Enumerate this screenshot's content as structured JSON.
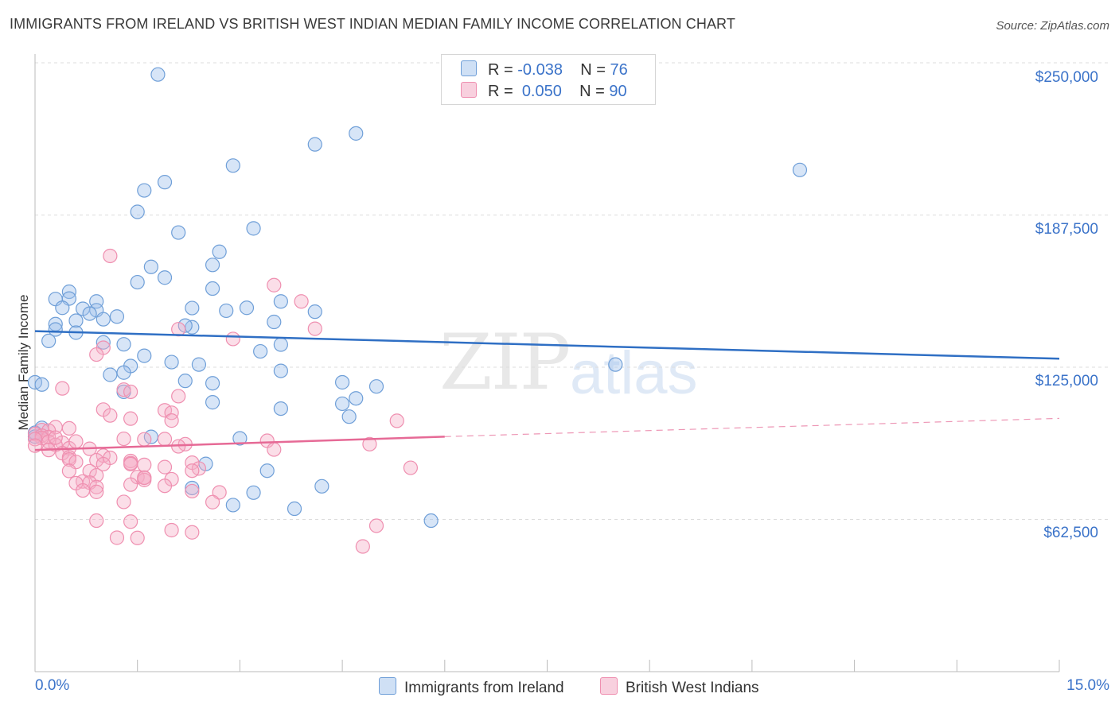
{
  "title": "IMMIGRANTS FROM IRELAND VS BRITISH WEST INDIAN MEDIAN FAMILY INCOME CORRELATION CHART",
  "source": "Source: ZipAtlas.com",
  "watermark": {
    "zip": "ZIP",
    "atlas": "atlas"
  },
  "legend": {
    "ireland": {
      "r_label": "R = ",
      "r_value": "-0.038",
      "n_label": "N = ",
      "n_value": "76"
    },
    "bwi": {
      "r_label": "R = ",
      "r_value": "0.050",
      "n_label": "N = ",
      "n_value": "90"
    }
  },
  "chart_data": {
    "type": "scatter",
    "title": "IMMIGRANTS FROM IRELAND VS BRITISH WEST INDIAN MEDIAN FAMILY INCOME CORRELATION CHART",
    "xlabel": "",
    "ylabel": "Median Family Income",
    "xlim": [
      0,
      15
    ],
    "ylim": [
      0,
      250000
    ],
    "x_tick_labels": [
      "0.0%",
      "15.0%"
    ],
    "y_ticks": [
      62500,
      125000,
      187500,
      250000
    ],
    "y_tick_labels": [
      "$62,500",
      "$125,000",
      "$187,500",
      "$250,000"
    ],
    "grid": "horizontal dashed",
    "legend_position": "top-center",
    "colors": {
      "ireland": "#6f9fd8",
      "bwi": "#ef8fb0",
      "ireland_line": "#2f6fc4",
      "bwi_line": "#e66a96"
    },
    "series": [
      {
        "name": "Immigrants from Ireland",
        "key": "ireland",
        "trend": {
          "x": [
            0,
            15
          ],
          "y": [
            139800,
            128500
          ]
        },
        "points": [
          [
            1.8,
            245200
          ],
          [
            4.7,
            221000
          ],
          [
            4.1,
            216500
          ],
          [
            11.2,
            206000
          ],
          [
            2.9,
            207800
          ],
          [
            1.9,
            201000
          ],
          [
            1.6,
            197600
          ],
          [
            1.5,
            188800
          ],
          [
            2.1,
            180300
          ],
          [
            3.2,
            182000
          ],
          [
            2.7,
            172400
          ],
          [
            1.7,
            166200
          ],
          [
            1.5,
            159900
          ],
          [
            1.9,
            161800
          ],
          [
            2.6,
            167000
          ],
          [
            2.6,
            157300
          ],
          [
            0.5,
            156000
          ],
          [
            0.3,
            153000
          ],
          [
            0.5,
            153200
          ],
          [
            0.9,
            152000
          ],
          [
            3.6,
            152000
          ],
          [
            0.4,
            149400
          ],
          [
            0.7,
            149000
          ],
          [
            0.9,
            148400
          ],
          [
            2.3,
            149300
          ],
          [
            3.1,
            149400
          ],
          [
            2.8,
            148200
          ],
          [
            4.1,
            147800
          ],
          [
            0.8,
            147000
          ],
          [
            1.2,
            145800
          ],
          [
            0.6,
            144100
          ],
          [
            1.0,
            144700
          ],
          [
            0.3,
            142700
          ],
          [
            3.5,
            143600
          ],
          [
            2.3,
            141400
          ],
          [
            2.2,
            142100
          ],
          [
            0.3,
            140500
          ],
          [
            0.6,
            139200
          ],
          [
            0.2,
            135800
          ],
          [
            1.0,
            135200
          ],
          [
            1.3,
            134400
          ],
          [
            3.6,
            134300
          ],
          [
            3.3,
            131500
          ],
          [
            1.6,
            129700
          ],
          [
            2.0,
            127100
          ],
          [
            2.4,
            126100
          ],
          [
            1.4,
            125500
          ],
          [
            8.5,
            126100
          ],
          [
            3.6,
            123500
          ],
          [
            1.3,
            122800
          ],
          [
            1.1,
            121900
          ],
          [
            2.2,
            119400
          ],
          [
            2.6,
            118400
          ],
          [
            4.5,
            118800
          ],
          [
            5.0,
            117100
          ],
          [
            0.0,
            118800
          ],
          [
            0.1,
            117900
          ],
          [
            1.3,
            114900
          ],
          [
            4.7,
            112200
          ],
          [
            2.6,
            110600
          ],
          [
            4.5,
            110000
          ],
          [
            3.6,
            108000
          ],
          [
            4.6,
            104700
          ],
          [
            0.1,
            100100
          ],
          [
            0.0,
            98100
          ],
          [
            1.7,
            96400
          ],
          [
            3.0,
            95800
          ],
          [
            2.5,
            85300
          ],
          [
            3.4,
            82500
          ],
          [
            2.3,
            75400
          ],
          [
            4.2,
            76100
          ],
          [
            3.2,
            73500
          ],
          [
            2.9,
            68400
          ],
          [
            3.8,
            66900
          ],
          [
            5.8,
            62000
          ],
          [
            0.0,
            96500
          ]
        ]
      },
      {
        "name": "British West Indians",
        "key": "bwi",
        "trend": {
          "x": [
            0,
            6
          ],
          "y": [
            91000,
            96500
          ]
        },
        "trend_dashed": {
          "x": [
            6,
            15
          ],
          "y": [
            96500,
            104000
          ]
        },
        "points": [
          [
            1.1,
            170700
          ],
          [
            3.5,
            158700
          ],
          [
            3.9,
            152000
          ],
          [
            4.1,
            140800
          ],
          [
            2.1,
            140600
          ],
          [
            2.9,
            136600
          ],
          [
            1.0,
            133000
          ],
          [
            0.9,
            130200
          ],
          [
            0.4,
            116300
          ],
          [
            1.3,
            115800
          ],
          [
            1.4,
            114900
          ],
          [
            2.1,
            113100
          ],
          [
            1.0,
            107600
          ],
          [
            1.9,
            107300
          ],
          [
            2.0,
            106300
          ],
          [
            1.1,
            105200
          ],
          [
            1.4,
            103900
          ],
          [
            2.0,
            103100
          ],
          [
            5.3,
            103000
          ],
          [
            0.3,
            100400
          ],
          [
            0.5,
            99900
          ],
          [
            0.1,
            99200
          ],
          [
            0.2,
            99000
          ],
          [
            0.0,
            97600
          ],
          [
            0.1,
            96900
          ],
          [
            0.2,
            96300
          ],
          [
            0.1,
            95900
          ],
          [
            0.0,
            95500
          ],
          [
            1.3,
            95600
          ],
          [
            1.9,
            95500
          ],
          [
            1.6,
            95400
          ],
          [
            3.4,
            94800
          ],
          [
            0.2,
            94400
          ],
          [
            0.4,
            94000
          ],
          [
            0.3,
            93100
          ],
          [
            4.9,
            93400
          ],
          [
            2.2,
            93400
          ],
          [
            2.1,
            92500
          ],
          [
            3.5,
            91200
          ],
          [
            0.2,
            91000
          ],
          [
            0.5,
            91700
          ],
          [
            0.8,
            91500
          ],
          [
            0.0,
            92800
          ],
          [
            0.4,
            89700
          ],
          [
            0.5,
            88000
          ],
          [
            1.0,
            88700
          ],
          [
            1.1,
            87800
          ],
          [
            0.5,
            87100
          ],
          [
            0.9,
            86800
          ],
          [
            0.6,
            86100
          ],
          [
            1.4,
            86500
          ],
          [
            1.4,
            85600
          ],
          [
            1.6,
            84900
          ],
          [
            2.3,
            85800
          ],
          [
            1.4,
            85200
          ],
          [
            1.0,
            85200
          ],
          [
            1.9,
            84000
          ],
          [
            5.5,
            83700
          ],
          [
            2.4,
            83400
          ],
          [
            2.3,
            82500
          ],
          [
            0.5,
            82400
          ],
          [
            0.8,
            82300
          ],
          [
            0.9,
            80600
          ],
          [
            1.5,
            79900
          ],
          [
            1.6,
            79700
          ],
          [
            2.0,
            79000
          ],
          [
            1.6,
            78700
          ],
          [
            0.7,
            78100
          ],
          [
            0.8,
            77600
          ],
          [
            0.6,
            77400
          ],
          [
            1.4,
            76800
          ],
          [
            1.9,
            76300
          ],
          [
            0.9,
            75800
          ],
          [
            0.7,
            74400
          ],
          [
            0.9,
            73800
          ],
          [
            2.3,
            74100
          ],
          [
            2.7,
            73600
          ],
          [
            1.3,
            69700
          ],
          [
            2.6,
            69600
          ],
          [
            0.9,
            62000
          ],
          [
            1.4,
            61600
          ],
          [
            5.0,
            59900
          ],
          [
            2.0,
            58100
          ],
          [
            2.3,
            57200
          ],
          [
            1.2,
            55000
          ],
          [
            1.5,
            54900
          ],
          [
            4.8,
            51400
          ],
          [
            1.6,
            79600
          ],
          [
            0.3,
            96100
          ],
          [
            0.6,
            94500
          ]
        ]
      }
    ]
  }
}
